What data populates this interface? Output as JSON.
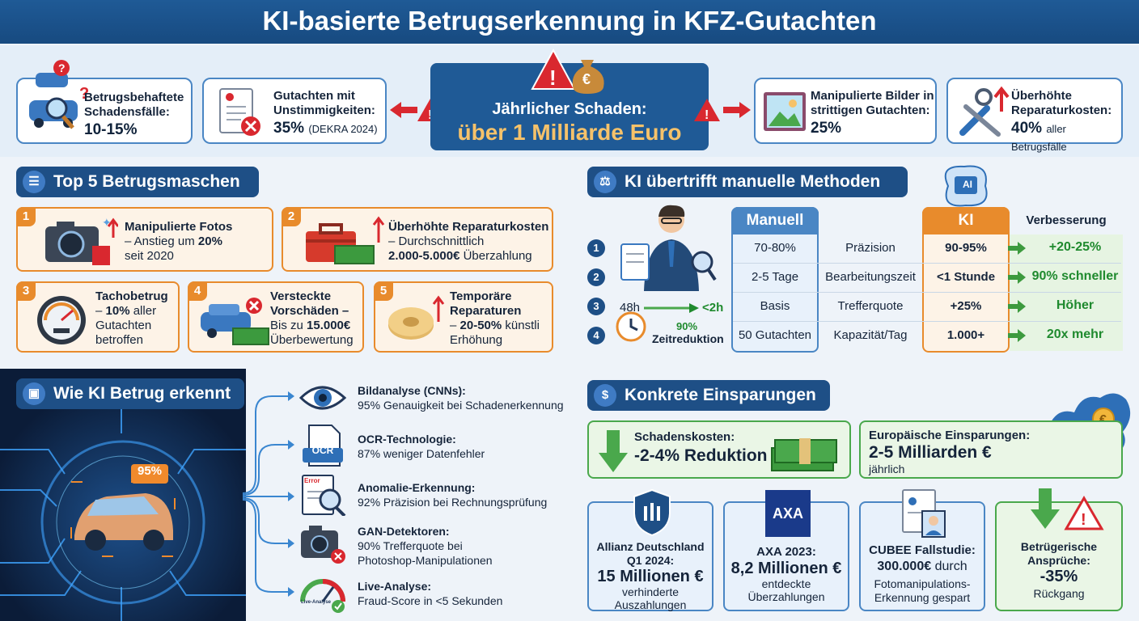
{
  "title": "KI-basierte Betrugserkennung in KFZ-Gutachten",
  "stats": [
    {
      "label": "Betrugsbehaftete Schadensfälle:",
      "value": "10-15%",
      "extra": ""
    },
    {
      "label": "Gutachten mit Unstimmigkeiten:",
      "value": "35%",
      "extra": "(DEKRA 2024)"
    },
    {
      "label": "Manipulierte Bilder in strittigen Gutachten:",
      "value": "25%",
      "extra": ""
    },
    {
      "label": "Überhöhte Reparaturkosten:",
      "value": "40%",
      "extra": "aller Betrugsfälle"
    }
  ],
  "damage": {
    "label": "Jährlicher Schaden:",
    "value": "über 1 Milliarde Euro",
    "currency_symbol": "€"
  },
  "top5": {
    "title": "Top 5 Betrugsmaschen",
    "items": [
      {
        "num": "1",
        "head": "Manipulierte Fotos",
        "l1": "– Anstieg um ",
        "l1b": "20%",
        "l2": "seit 2020"
      },
      {
        "num": "2",
        "head": "Überhöhte Reparaturkosten",
        "l1": "– Durchschnittlich",
        "l2b": "2.000-5.000€",
        "l2": " Überzahlung"
      },
      {
        "num": "3",
        "head": "Tachobetrug",
        "l1": "– ",
        "l1b": "10%",
        "l1c": " aller",
        "l2": "Gutachten",
        "l3": "betroffen"
      },
      {
        "num": "4",
        "head": "Versteckte",
        "l1": "Vorschäden –",
        "l2": "Bis zu ",
        "l2b": "15.000€",
        "l3": "Überbewertung"
      },
      {
        "num": "5",
        "head": "Temporäre",
        "l1": "Reparaturen",
        "l2": "– ",
        "l2b": "20-50%",
        "l2c": " künstli",
        "l3": "Erhöhung"
      }
    ]
  },
  "compare": {
    "title": "KI übertrifft manuelle Methoden",
    "col_manual": "Manuell",
    "col_ai": "KI",
    "col_impr": "Verbesserung",
    "ai_chip": "AI",
    "rows": [
      {
        "num": "1",
        "manual": "70-80%",
        "metric": "Präzision",
        "ai": "90-95%",
        "impr": "+20-25%"
      },
      {
        "num": "2",
        "manual": "2-5 Tage",
        "metric": "Bearbeitungszeit",
        "ai": "<1 Stunde",
        "impr": "90% schneller"
      },
      {
        "num": "3",
        "manual": "Basis",
        "metric": "Trefferquote",
        "ai": "+25%",
        "impr": "Höher"
      },
      {
        "num": "4",
        "manual": "50 Gutachten",
        "metric": "Kapazität/Tag",
        "ai": "1.000+",
        "impr": "20x mehr"
      }
    ],
    "time_from": "48h",
    "time_to": "<2h",
    "time_pct": "90%",
    "time_label": "Zeitreduktion"
  },
  "detect": {
    "title": "Wie KI Betrug erkennt",
    "score": "95%",
    "items": [
      {
        "head": "Bildanalyse (CNNs):",
        "text": "95% Genauigkeit bei Schadenerkennung",
        "icon": "eye-icon"
      },
      {
        "head": "OCR-Technologie:",
        "text": "87% weniger Datenfehler",
        "icon": "ocr-document-icon",
        "badge": "OCR"
      },
      {
        "head": "Anomalie-Erkennung:",
        "text": "92% Präzision bei Rechnungsprüfung",
        "icon": "magnifier-document-icon",
        "badge": "Error"
      },
      {
        "head": "GAN-Detektoren:",
        "text": "90% Trefferquote bei",
        "text2": "Photoshop-Manipulationen",
        "icon": "camera-x-icon"
      },
      {
        "head": "Live-Analyse:",
        "text": "Fraud-Score in <5 Sekunden",
        "icon": "gauge-icon",
        "badge": "Live-Analyse"
      }
    ]
  },
  "savings": {
    "title": "Konkrete Einsparungen",
    "costs": {
      "label": "Schadenskosten:",
      "value": "-2-4% Reduktion"
    },
    "europe": {
      "label": "Europäische Einsparungen:",
      "value": "2-5 Milliarden €",
      "sub": "jährlich"
    },
    "cards": [
      {
        "l1": "Allianz Deutschland",
        "l2": "Q1 2024:",
        "value": "15 Millionen €",
        "s1": "verhinderte",
        "s2": "Auszahlungen"
      },
      {
        "logo": "AXA",
        "l1": "AXA 2023:",
        "value": "8,2 Millionen €",
        "s1": "entdeckte",
        "s2": "Überzahlungen"
      },
      {
        "l1": "CUBEE Fallstudie:",
        "value": "300.000€",
        "value_suffix": " durch",
        "s1": "Fotomanipulations-",
        "s2": "Erkennung gespart"
      },
      {
        "l1": "Betrügerische",
        "l2": "Ansprüche:",
        "value": "-35%",
        "s1": "Rückgang"
      }
    ]
  },
  "colors": {
    "blue": "#1f5a96",
    "orange": "#e88b2c",
    "green": "#4aa84c",
    "red": "#d9282f"
  }
}
